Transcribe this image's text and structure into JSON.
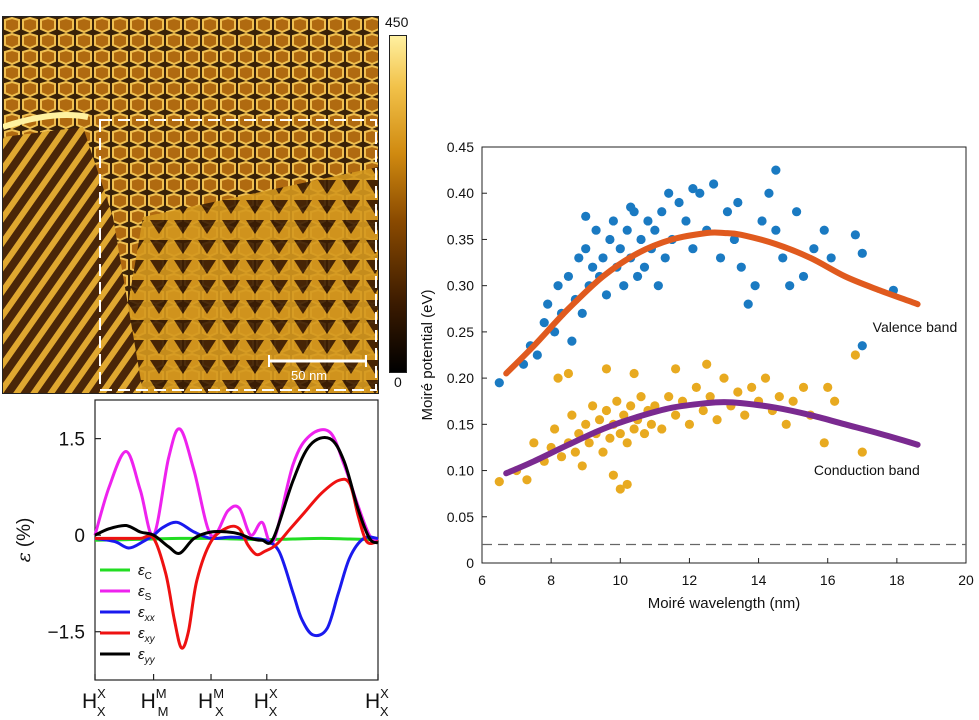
{
  "stm_image": {
    "scale_bar_label": "50 nm",
    "colorbar": {
      "max_label": "450",
      "min_label": "0",
      "colors": [
        "#000000",
        "#3a1a00",
        "#8a4a00",
        "#d08a10",
        "#f2c24a",
        "#fff0a0"
      ]
    }
  },
  "chart_data": [
    {
      "type": "line",
      "ylabel_symbol": "ε",
      "ylabel_unit": "(%)",
      "yticks": [
        {
          "value": 1.5,
          "label": "1.5"
        },
        {
          "value": 0,
          "label": "0"
        },
        {
          "value": -1.5,
          "label": "−1.5"
        }
      ],
      "ylim": [
        -2.25,
        2.1
      ],
      "xlim": [
        0,
        10
      ],
      "x_ticks": [
        {
          "x": 0,
          "base": "H",
          "sup": "X",
          "sub": "X"
        },
        {
          "x": 2.07,
          "base": "H",
          "sup": "M",
          "sub": "M"
        },
        {
          "x": 4.1,
          "base": "H",
          "sup": "M",
          "sub": "X"
        },
        {
          "x": 6.07,
          "base": "H",
          "sup": "X",
          "sub": "X"
        },
        {
          "x": 10,
          "base": "H",
          "sup": "X",
          "sub": "X"
        }
      ],
      "series": [
        {
          "name": "εC",
          "base": "ε",
          "sub": "C",
          "color": "#22dd22",
          "x": [
            0,
            1,
            2,
            3,
            4,
            5,
            6,
            7,
            8,
            9,
            10
          ],
          "y": [
            -0.08,
            -0.07,
            -0.06,
            -0.05,
            -0.05,
            -0.06,
            -0.07,
            -0.06,
            -0.05,
            -0.06,
            -0.07
          ]
        },
        {
          "name": "εS",
          "base": "ε",
          "sub": "S",
          "color": "#ee22ee",
          "x": [
            0,
            0.5,
            1.1,
            1.6,
            2.07,
            2.6,
            3.0,
            3.5,
            4.1,
            4.7,
            5.1,
            5.5,
            5.9,
            6.3,
            7.0,
            7.6,
            8.3,
            8.8,
            9.3,
            9.7,
            10
          ],
          "y": [
            0,
            0.75,
            1.3,
            0.7,
            0,
            1.2,
            1.65,
            1.0,
            0,
            0.38,
            0.42,
            0.0,
            0.2,
            -0.1,
            1.1,
            1.55,
            1.6,
            1.1,
            0.45,
            0.0,
            -0.08
          ]
        },
        {
          "name": "εxx",
          "base": "ε",
          "sub": "xx",
          "color": "#1a1aee",
          "x": [
            0,
            0.7,
            1.2,
            1.7,
            2.07,
            2.4,
            2.9,
            3.5,
            4.1,
            4.8,
            5.5,
            6.0,
            6.5,
            7.0,
            7.3,
            7.7,
            8.2,
            8.6,
            9.0,
            9.5,
            10
          ],
          "y": [
            -0.05,
            -0.1,
            -0.2,
            -0.1,
            0,
            0.12,
            0.2,
            0.05,
            -0.05,
            -0.03,
            -0.05,
            -0.08,
            -0.25,
            -0.9,
            -1.3,
            -1.55,
            -1.45,
            -0.9,
            -0.35,
            -0.05,
            -0.05
          ]
        },
        {
          "name": "εxy",
          "base": "ε",
          "sub": "xy",
          "color": "#ee1111",
          "x": [
            0,
            1.0,
            1.6,
            2.07,
            2.5,
            2.8,
            3.05,
            3.3,
            3.6,
            4.1,
            4.7,
            5.1,
            5.4,
            5.7,
            6.0,
            6.4,
            6.9,
            7.4,
            8.0,
            8.6,
            9.0,
            9.3,
            9.6,
            10
          ],
          "y": [
            -0.05,
            -0.05,
            -0.05,
            -0.05,
            -0.6,
            -1.3,
            -1.75,
            -1.5,
            -0.7,
            -0.1,
            0.12,
            0.1,
            -0.15,
            -0.3,
            -0.25,
            -0.15,
            0.1,
            0.35,
            0.65,
            0.85,
            0.8,
            0.3,
            -0.1,
            -0.1
          ]
        },
        {
          "name": "εyy",
          "base": "ε",
          "sub": "yy",
          "color": "#000000",
          "x": [
            0,
            0.5,
            1.1,
            1.6,
            2.07,
            2.6,
            3.0,
            3.5,
            4.1,
            4.7,
            5.1,
            5.5,
            5.9,
            6.3,
            7.0,
            7.6,
            8.3,
            8.8,
            9.3,
            9.7,
            10
          ],
          "y": [
            0,
            0.1,
            0.15,
            0.05,
            0,
            -0.18,
            -0.28,
            -0.05,
            0.05,
            0.05,
            0.02,
            -0.05,
            -0.08,
            -0.05,
            0.85,
            1.4,
            1.5,
            1.15,
            0.4,
            -0.05,
            -0.12
          ]
        }
      ]
    },
    {
      "type": "scatter",
      "xlabel": "Moiré wavelength (nm)",
      "ylabel": "Moiré potential (eV)",
      "xlim": [
        6,
        20
      ],
      "ylim": [
        0,
        0.45
      ],
      "xticks": [
        6,
        8,
        10,
        12,
        14,
        16,
        18,
        20
      ],
      "yticks": [
        {
          "value": 0,
          "label": "0"
        },
        {
          "value": 0.05,
          "label": "0.05"
        },
        {
          "value": 0.1,
          "label": "0.10"
        },
        {
          "value": 0.15,
          "label": "0.15"
        },
        {
          "value": 0.2,
          "label": "0.20"
        },
        {
          "value": 0.25,
          "label": "0.25"
        },
        {
          "value": 0.3,
          "label": "0.30"
        },
        {
          "value": 0.35,
          "label": "0.35"
        },
        {
          "value": 0.4,
          "label": "0.40"
        },
        {
          "value": 0.45,
          "label": "0.45"
        }
      ],
      "dashed_reference_y": 0.02,
      "series": [
        {
          "name": "Valence band",
          "color": "#1a7ac2",
          "points": [
            [
              6.5,
              0.195
            ],
            [
              7.2,
              0.215
            ],
            [
              7.4,
              0.235
            ],
            [
              7.6,
              0.225
            ],
            [
              7.8,
              0.26
            ],
            [
              7.9,
              0.28
            ],
            [
              8.1,
              0.25
            ],
            [
              8.2,
              0.3
            ],
            [
              8.3,
              0.27
            ],
            [
              8.5,
              0.31
            ],
            [
              8.6,
              0.24
            ],
            [
              8.7,
              0.285
            ],
            [
              8.8,
              0.33
            ],
            [
              8.9,
              0.27
            ],
            [
              9.0,
              0.34
            ],
            [
              9.1,
              0.3
            ],
            [
              9.2,
              0.32
            ],
            [
              9.3,
              0.36
            ],
            [
              9.4,
              0.31
            ],
            [
              9.5,
              0.33
            ],
            [
              9.6,
              0.29
            ],
            [
              9.7,
              0.35
            ],
            [
              9.8,
              0.37
            ],
            [
              9.9,
              0.32
            ],
            [
              10.0,
              0.34
            ],
            [
              10.1,
              0.3
            ],
            [
              10.2,
              0.36
            ],
            [
              10.3,
              0.33
            ],
            [
              10.4,
              0.38
            ],
            [
              10.5,
              0.31
            ],
            [
              10.6,
              0.35
            ],
            [
              10.7,
              0.32
            ],
            [
              10.8,
              0.37
            ],
            [
              10.9,
              0.34
            ],
            [
              11.0,
              0.36
            ],
            [
              11.1,
              0.3
            ],
            [
              11.2,
              0.38
            ],
            [
              11.3,
              0.33
            ],
            [
              11.5,
              0.35
            ],
            [
              11.7,
              0.39
            ],
            [
              11.9,
              0.37
            ],
            [
              12.1,
              0.34
            ],
            [
              12.3,
              0.4
            ],
            [
              12.5,
              0.36
            ],
            [
              12.7,
              0.41
            ],
            [
              12.9,
              0.33
            ],
            [
              13.1,
              0.38
            ],
            [
              13.3,
              0.35
            ],
            [
              13.5,
              0.32
            ],
            [
              13.7,
              0.28
            ],
            [
              13.9,
              0.3
            ],
            [
              14.1,
              0.37
            ],
            [
              14.3,
              0.4
            ],
            [
              14.5,
              0.36
            ],
            [
              14.7,
              0.33
            ],
            [
              14.9,
              0.3
            ],
            [
              15.1,
              0.38
            ],
            [
              15.3,
              0.31
            ],
            [
              15.6,
              0.34
            ],
            [
              15.9,
              0.36
            ],
            [
              16.1,
              0.33
            ],
            [
              16.8,
              0.355
            ],
            [
              17.0,
              0.335
            ],
            [
              17.0,
              0.235
            ],
            [
              17.9,
              0.295
            ],
            [
              14.5,
              0.425
            ],
            [
              12.1,
              0.405
            ],
            [
              11.4,
              0.4
            ],
            [
              13.4,
              0.39
            ],
            [
              10.3,
              0.385
            ],
            [
              9.0,
              0.375
            ]
          ]
        },
        {
          "name": "Conduction band",
          "color": "#e8aa20",
          "points": [
            [
              6.5,
              0.088
            ],
            [
              7.0,
              0.1
            ],
            [
              7.3,
              0.09
            ],
            [
              7.5,
              0.13
            ],
            [
              7.8,
              0.11
            ],
            [
              8.0,
              0.125
            ],
            [
              8.1,
              0.145
            ],
            [
              8.3,
              0.115
            ],
            [
              8.5,
              0.13
            ],
            [
              8.6,
              0.16
            ],
            [
              8.7,
              0.12
            ],
            [
              8.8,
              0.14
            ],
            [
              8.9,
              0.105
            ],
            [
              9.0,
              0.15
            ],
            [
              9.1,
              0.13
            ],
            [
              9.2,
              0.17
            ],
            [
              9.3,
              0.14
            ],
            [
              9.4,
              0.155
            ],
            [
              9.5,
              0.12
            ],
            [
              9.6,
              0.165
            ],
            [
              9.7,
              0.135
            ],
            [
              9.8,
              0.15
            ],
            [
              9.9,
              0.175
            ],
            [
              10.0,
              0.14
            ],
            [
              10.1,
              0.16
            ],
            [
              10.2,
              0.13
            ],
            [
              10.3,
              0.17
            ],
            [
              10.4,
              0.145
            ],
            [
              10.5,
              0.155
            ],
            [
              10.6,
              0.18
            ],
            [
              10.7,
              0.14
            ],
            [
              10.8,
              0.165
            ],
            [
              10.9,
              0.15
            ],
            [
              11.0,
              0.17
            ],
            [
              11.2,
              0.145
            ],
            [
              11.4,
              0.18
            ],
            [
              11.6,
              0.16
            ],
            [
              11.8,
              0.175
            ],
            [
              12.0,
              0.15
            ],
            [
              12.2,
              0.19
            ],
            [
              12.4,
              0.165
            ],
            [
              12.6,
              0.18
            ],
            [
              12.8,
              0.155
            ],
            [
              13.0,
              0.2
            ],
            [
              13.2,
              0.17
            ],
            [
              13.4,
              0.185
            ],
            [
              13.6,
              0.16
            ],
            [
              13.8,
              0.19
            ],
            [
              14.0,
              0.175
            ],
            [
              14.2,
              0.2
            ],
            [
              14.4,
              0.165
            ],
            [
              14.6,
              0.18
            ],
            [
              14.8,
              0.15
            ],
            [
              15.0,
              0.175
            ],
            [
              15.3,
              0.19
            ],
            [
              15.5,
              0.16
            ],
            [
              15.9,
              0.13
            ],
            [
              16.0,
              0.19
            ],
            [
              16.2,
              0.175
            ],
            [
              16.8,
              0.225
            ],
            [
              17.0,
              0.12
            ],
            [
              10.0,
              0.08
            ],
            [
              10.2,
              0.085
            ],
            [
              9.8,
              0.095
            ],
            [
              8.2,
              0.2
            ],
            [
              8.5,
              0.205
            ],
            [
              9.6,
              0.21
            ],
            [
              10.4,
              0.205
            ],
            [
              11.6,
              0.21
            ],
            [
              12.5,
              0.215
            ]
          ]
        }
      ],
      "fits": [
        {
          "name": "Valence band fit",
          "color": "#e05a1e",
          "x": [
            6.7,
            7.5,
            8.5,
            9.5,
            10.5,
            11.5,
            12.5,
            13.0,
            13.5,
            14.5,
            15.5,
            16.5,
            17.5,
            18.6
          ],
          "y": [
            0.205,
            0.235,
            0.275,
            0.31,
            0.335,
            0.35,
            0.357,
            0.357,
            0.355,
            0.345,
            0.33,
            0.31,
            0.295,
            0.28
          ]
        },
        {
          "name": "Conduction band fit",
          "color": "#7a2a90",
          "x": [
            6.7,
            7.5,
            8.5,
            9.5,
            10.5,
            11.5,
            12.5,
            13.0,
            13.5,
            14.5,
            15.5,
            16.5,
            17.5,
            18.6
          ],
          "y": [
            0.097,
            0.11,
            0.128,
            0.145,
            0.158,
            0.168,
            0.173,
            0.174,
            0.173,
            0.168,
            0.16,
            0.15,
            0.14,
            0.128
          ]
        }
      ],
      "annotations": [
        {
          "text": "Valence band",
          "x": 17.3,
          "y": 0.25
        },
        {
          "text": "Conduction band",
          "x": 15.6,
          "y": 0.095
        }
      ]
    }
  ]
}
